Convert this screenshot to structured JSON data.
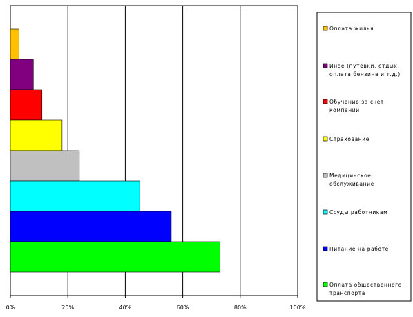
{
  "chart_data": {
    "type": "bar",
    "orientation": "horizontal",
    "categories": [
      "Оплата жилья",
      "Иное (путевки, отдых, оплата бензина и т.д.)",
      "Обучение за счет компании",
      "Страхование",
      "Медицинское обслуживание",
      "Ссуды работникам",
      "Питание на работе",
      "Оплата общественного транспорта"
    ],
    "values": [
      3,
      8,
      11,
      18,
      24,
      45,
      56,
      73
    ],
    "colors": [
      "#ffc000",
      "#800080",
      "#ff0000",
      "#ffff00",
      "#c0c0c0",
      "#00ffff",
      "#0000ff",
      "#00ff00"
    ],
    "legend_lines": [
      [
        "Оплата жилья"
      ],
      [
        "Иное (путевки, отдых,",
        "оплата бензина и т.д.)"
      ],
      [
        "Обучение за счет",
        "компании"
      ],
      [
        "Страхование"
      ],
      [
        "Медицинское",
        "обслуживание"
      ],
      [
        "Ссуды работникам"
      ],
      [
        "Питание на работе"
      ],
      [
        "Оплата общественного",
        "транспорта"
      ]
    ],
    "x_ticks": [
      "0%",
      "20%",
      "40%",
      "60%",
      "80%",
      "100%"
    ],
    "xlim": [
      0,
      100
    ],
    "grid": "vertical",
    "legend_position": "right",
    "title": "",
    "xlabel": "",
    "ylabel": ""
  }
}
